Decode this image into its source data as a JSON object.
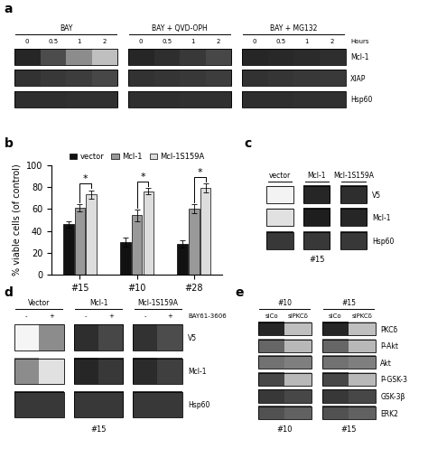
{
  "chart_data": [
    {
      "type": "heatmap",
      "title": "a",
      "groups": [
        "BAY",
        "BAY + QVD-OPH",
        "BAY + MG132"
      ],
      "categories": [
        "0",
        "0.5",
        "1",
        "2"
      ],
      "category_label": "Hours",
      "rows": [
        "Mcl-1",
        "XIAP",
        "Hsp60"
      ],
      "cells": [
        [
          [
            0.85,
            0.7,
            0.45,
            0.25
          ],
          [
            0.85,
            0.82,
            0.78,
            0.72
          ],
          [
            0.85,
            0.84,
            0.83,
            0.82
          ]
        ],
        [
          [
            0.8,
            0.78,
            0.76,
            0.72
          ],
          [
            0.8,
            0.79,
            0.78,
            0.76
          ],
          [
            0.8,
            0.79,
            0.78,
            0.77
          ]
        ],
        [
          [
            0.82,
            0.82,
            0.81,
            0.81
          ],
          [
            0.82,
            0.82,
            0.81,
            0.81
          ],
          [
            0.82,
            0.82,
            0.81,
            0.81
          ]
        ]
      ],
      "color_range": [
        0,
        1
      ],
      "tick_labels": "y"
    },
    {
      "type": "bar",
      "title": "b",
      "categories": [
        "#15",
        "#10",
        "#28"
      ],
      "series": [
        {
          "name": "vector",
          "color": "#111111",
          "values": [
            46,
            30,
            28
          ],
          "errors": [
            3,
            4,
            3
          ]
        },
        {
          "name": "Mcl-1",
          "color": "#999999",
          "values": [
            61,
            54,
            60
          ],
          "errors": [
            3,
            5,
            4
          ]
        },
        {
          "name": "Mcl-1S159A",
          "color": "#dddddd",
          "values": [
            73,
            76,
            79
          ],
          "errors": [
            4,
            3,
            4
          ]
        }
      ],
      "y_label": "% viable cells (of control)",
      "ylim": [
        0,
        100
      ],
      "yticks": [
        0,
        20,
        40,
        60,
        80,
        100
      ],
      "legend": "above",
      "significance": [
        {
          "category": "#15",
          "series": [
            "Mcl-1",
            "Mcl-1S159A"
          ],
          "label": "*"
        },
        {
          "category": "#10",
          "series": [
            "Mcl-1",
            "Mcl-1S159A"
          ],
          "label": "*"
        },
        {
          "category": "#28",
          "series": [
            "Mcl-1",
            "Mcl-1S159A"
          ],
          "label": "*"
        }
      ]
    },
    {
      "type": "heatmap",
      "title": "c",
      "groups": [
        "vector",
        "Mcl-1",
        "Mcl-1S159A"
      ],
      "rows": [
        "V5",
        "Mcl-1",
        "Hsp60"
      ],
      "cells": [
        [
          [
            0.05
          ],
          [
            0.85
          ],
          [
            0.82
          ]
        ],
        [
          [
            0.12
          ],
          [
            0.88
          ],
          [
            0.85
          ]
        ],
        [
          [
            0.78
          ],
          [
            0.78
          ],
          [
            0.78
          ]
        ]
      ],
      "subtitle": "#15",
      "color_range": [
        0,
        1
      ],
      "tick_labels": "y"
    },
    {
      "type": "heatmap",
      "title": "d",
      "groups": [
        "Vector",
        "Mcl-1",
        "Mcl-1S159A"
      ],
      "categories": [
        "-",
        "+"
      ],
      "category_label": "BAY61-3606",
      "rows": [
        "V5",
        "Mcl-1",
        "Hsp60"
      ],
      "cells": [
        [
          [
            0.04,
            0.45
          ],
          [
            0.82,
            0.72
          ],
          [
            0.8,
            0.7
          ]
        ],
        [
          [
            0.45,
            0.12
          ],
          [
            0.85,
            0.78
          ],
          [
            0.83,
            0.75
          ]
        ],
        [
          [
            0.78,
            0.78
          ],
          [
            0.78,
            0.78
          ],
          [
            0.78,
            0.78
          ]
        ]
      ],
      "subtitle": "#15",
      "color_range": [
        0,
        1
      ],
      "tick_labels": "y"
    },
    {
      "type": "heatmap",
      "title": "e",
      "groups": [
        "#10",
        "#15"
      ],
      "categories": [
        "siCo",
        "siPKCδ"
      ],
      "rows": [
        "PKCδ",
        "P-Akt",
        "Akt",
        "P-GSK-3",
        "GSK-3β",
        "ERK2"
      ],
      "cells": [
        [
          [
            0.85,
            0.25
          ],
          [
            0.85,
            0.25
          ]
        ],
        [
          [
            0.6,
            0.28
          ],
          [
            0.6,
            0.28
          ]
        ],
        [
          [
            0.55,
            0.5
          ],
          [
            0.55,
            0.5
          ]
        ],
        [
          [
            0.72,
            0.28
          ],
          [
            0.72,
            0.28
          ]
        ],
        [
          [
            0.78,
            0.72
          ],
          [
            0.78,
            0.72
          ]
        ],
        [
          [
            0.68,
            0.62
          ],
          [
            0.68,
            0.62
          ]
        ]
      ],
      "subtitle": [
        "#10",
        "#15"
      ],
      "color_range": [
        0,
        1
      ],
      "tick_labels": "y"
    }
  ]
}
